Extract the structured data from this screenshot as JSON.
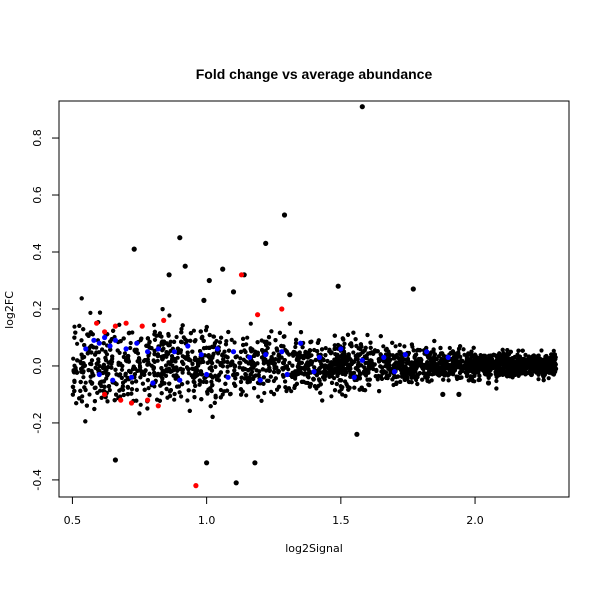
{
  "chart_data": {
    "type": "scatter",
    "title": "Fold change vs average abundance",
    "xlabel": "log2Signal",
    "ylabel": "log2FC",
    "xlim": [
      0.45,
      2.35
    ],
    "ylim": [
      -0.46,
      0.93
    ],
    "xticks": [
      0.5,
      1.0,
      1.5,
      2.0
    ],
    "xtick_labels": [
      "0.5",
      "1.0",
      "1.5",
      "2.0"
    ],
    "yticks": [
      -0.4,
      -0.2,
      0.0,
      0.2,
      0.4,
      0.6,
      0.8
    ],
    "ytick_labels": [
      "-0.4",
      "-0.2",
      "0.0",
      "0.2",
      "0.4",
      "0.6",
      "0.8"
    ],
    "grid": false,
    "legend": "none",
    "series": [
      {
        "color": "#000000",
        "points": [
          [
            1.58,
            0.91
          ],
          [
            1.29,
            0.53
          ],
          [
            0.9,
            0.45
          ],
          [
            1.22,
            0.43
          ],
          [
            0.73,
            0.41
          ],
          [
            0.92,
            0.35
          ],
          [
            1.06,
            0.34
          ],
          [
            1.14,
            0.32
          ],
          [
            0.86,
            0.32
          ],
          [
            1.77,
            0.27
          ],
          [
            1.31,
            0.25
          ],
          [
            1.49,
            0.28
          ],
          [
            0.99,
            0.23
          ],
          [
            1.1,
            0.26
          ],
          [
            1.01,
            0.3
          ],
          [
            0.66,
            -0.33
          ],
          [
            1.0,
            -0.34
          ],
          [
            1.11,
            -0.41
          ],
          [
            1.18,
            -0.34
          ],
          [
            1.56,
            -0.24
          ],
          [
            1.88,
            -0.1
          ],
          [
            1.94,
            -0.1
          ],
          [
            2.05,
            -0.06
          ],
          [
            2.21,
            -0.03
          ],
          [
            2.3,
            -0.01
          ]
        ]
      },
      {
        "color": "#0000ff",
        "points": [
          [
            0.55,
            0.06
          ],
          [
            0.58,
            0.09
          ],
          [
            0.6,
            0.08
          ],
          [
            0.62,
            0.1
          ],
          [
            0.64,
            0.07
          ],
          [
            0.66,
            0.09
          ],
          [
            0.7,
            0.06
          ],
          [
            0.74,
            0.08
          ],
          [
            0.78,
            0.05
          ],
          [
            0.82,
            0.06
          ],
          [
            0.88,
            0.05
          ],
          [
            0.93,
            0.07
          ],
          [
            0.98,
            0.04
          ],
          [
            1.04,
            0.06
          ],
          [
            1.1,
            0.05
          ],
          [
            1.16,
            0.03
          ],
          [
            1.22,
            0.04
          ],
          [
            1.28,
            0.05
          ],
          [
            1.35,
            0.08
          ],
          [
            1.42,
            0.03
          ],
          [
            1.5,
            0.06
          ],
          [
            1.58,
            0.02
          ],
          [
            1.66,
            0.03
          ],
          [
            1.74,
            0.04
          ],
          [
            1.82,
            0.05
          ],
          [
            1.9,
            0.03
          ],
          [
            0.6,
            -0.03
          ],
          [
            0.65,
            -0.05
          ],
          [
            0.72,
            -0.04
          ],
          [
            0.8,
            -0.06
          ],
          [
            0.9,
            -0.05
          ],
          [
            1.0,
            -0.03
          ],
          [
            1.08,
            -0.04
          ],
          [
            1.2,
            -0.05
          ],
          [
            1.3,
            -0.03
          ],
          [
            1.4,
            -0.02
          ],
          [
            1.55,
            -0.04
          ],
          [
            1.7,
            -0.02
          ]
        ]
      },
      {
        "color": "#ff0000",
        "points": [
          [
            0.59,
            0.15
          ],
          [
            0.62,
            0.12
          ],
          [
            0.66,
            0.14
          ],
          [
            0.7,
            0.15
          ],
          [
            0.76,
            0.14
          ],
          [
            0.84,
            0.16
          ],
          [
            1.13,
            0.32
          ],
          [
            1.19,
            0.18
          ],
          [
            1.28,
            0.2
          ],
          [
            0.62,
            -0.1
          ],
          [
            0.68,
            -0.12
          ],
          [
            0.72,
            -0.13
          ],
          [
            0.78,
            -0.12
          ],
          [
            0.82,
            -0.14
          ],
          [
            0.96,
            -0.42
          ]
        ]
      }
    ]
  }
}
